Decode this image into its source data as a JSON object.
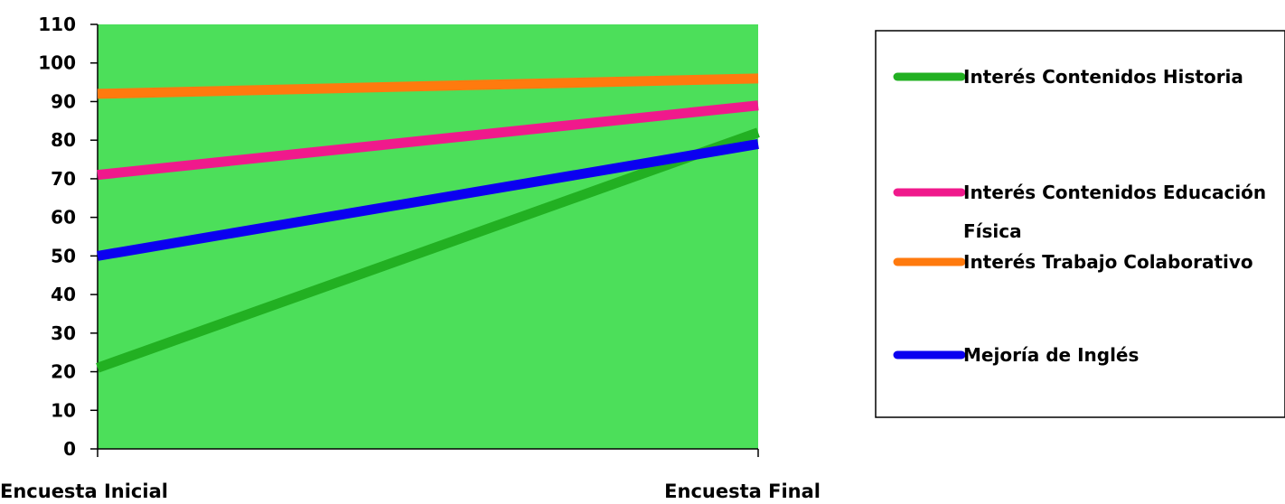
{
  "chart_data": {
    "type": "line",
    "categories": [
      "Encuesta Inicial",
      "Encuesta Final"
    ],
    "ylim": [
      0,
      110
    ],
    "yticks": [
      "0",
      "10",
      "20",
      "30",
      "40",
      "50",
      "60",
      "70",
      "80",
      "90",
      "100",
      "110"
    ],
    "grid": false,
    "plot_background": "#4cdf5a",
    "legend_position": "right",
    "series": [
      {
        "name": "Interés Contenidos Historia",
        "name_lines": [
          "Interés Contenidos Historia"
        ],
        "color": "#22b022",
        "values": [
          21,
          82
        ]
      },
      {
        "name": "Interés Contenidos Educación Física",
        "name_lines": [
          "Interés Contenidos Educación",
          "Física"
        ],
        "color": "#f0198c",
        "values": [
          71,
          89
        ]
      },
      {
        "name": "Interés Trabajo Colaborativo",
        "name_lines": [
          "Interés Trabajo Colaborativo"
        ],
        "color": "#ff7a0e",
        "values": [
          92,
          96
        ]
      },
      {
        "name": "Mejoría de Inglés",
        "name_lines": [
          "Mejoría de Inglés"
        ],
        "color": "#0b00f0",
        "values": [
          50,
          79
        ]
      }
    ]
  }
}
